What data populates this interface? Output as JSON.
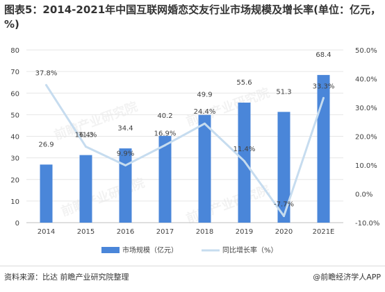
{
  "title": "图表5：2014-2021年中国互联网婚恋交友行业市场规模及增长率(单位：亿元，%)",
  "source": "资料来源：比达 前瞻产业研究院整理",
  "publisher": "@前瞻经济学人APP",
  "watermark": "前瞻产业研究院",
  "colors": {
    "bar": "#4a86d9",
    "line": "#c6dcef",
    "grid": "#e6e6e6",
    "text": "#404040"
  },
  "chart_data": {
    "type": "bar",
    "categories": [
      "2014",
      "2015",
      "2016",
      "2017",
      "2018",
      "2019",
      "2020",
      "2021E"
    ],
    "series": [
      {
        "name": "市场规模（亿元）",
        "type": "bar",
        "axis": "left",
        "values": [
          26.9,
          31.3,
          34.4,
          40.2,
          49.9,
          55.6,
          51.3,
          68.4
        ]
      },
      {
        "name": "同比增长率（%）",
        "type": "line",
        "axis": "right",
        "values": [
          37.8,
          16.4,
          9.9,
          16.9,
          24.4,
          11.4,
          -7.7,
          33.3
        ]
      }
    ],
    "bar_labels": [
      "26.9",
      "31.3",
      "34.4",
      "40.2",
      "49.9",
      "55.6",
      "51.3",
      "68.4"
    ],
    "line_labels": [
      "37.8%",
      "16.4%",
      "9.9%",
      "16.9%",
      "24.4%",
      "11.4%",
      "-7.7%",
      "33.3%"
    ],
    "ylim_left": [
      0,
      80
    ],
    "yticks_left": [
      "0",
      "10",
      "20",
      "30",
      "40",
      "50",
      "60",
      "70",
      "80"
    ],
    "ylim_right": [
      -10,
      50
    ],
    "yticks_right": [
      "-10.0%",
      "0.0%",
      "10.0%",
      "20.0%",
      "30.0%",
      "40.0%",
      "50.0%"
    ],
    "grid": true,
    "legend_position": "bottom"
  }
}
